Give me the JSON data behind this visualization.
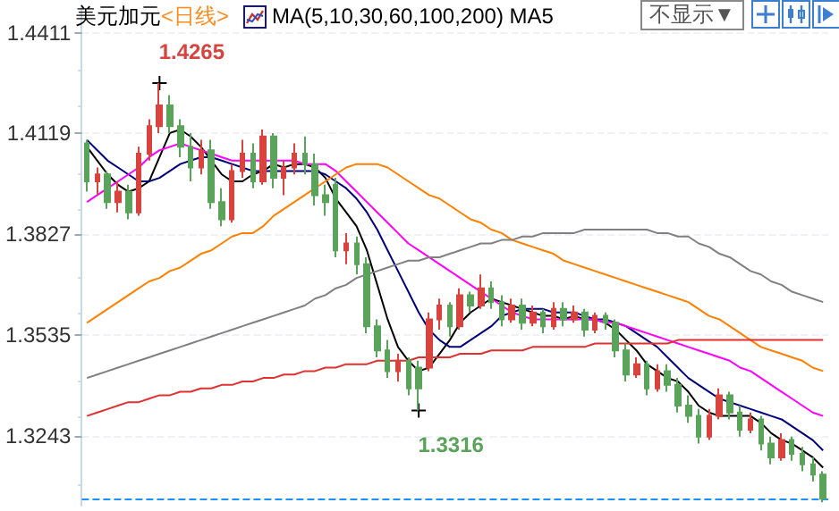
{
  "chart_data": {
    "type": "candlestick",
    "title": "美元加元",
    "subtitle": "<日线>",
    "annotations": [
      "MA(5,10,30,60,100,200) MA5",
      "不显示▼",
      "1.4265",
      "1.3316"
    ],
    "categories": [
      null,
      null,
      null,
      null,
      null,
      null,
      null,
      null,
      null,
      null,
      null,
      null,
      null,
      null,
      null,
      null,
      null,
      null,
      null,
      null,
      null,
      null,
      null,
      null,
      null,
      null,
      null,
      null,
      null,
      null,
      null,
      null,
      null,
      null,
      null,
      null,
      null,
      null,
      null,
      null,
      null,
      null,
      null,
      null,
      null,
      null,
      null,
      null,
      null,
      null,
      null,
      null,
      null,
      null,
      null,
      null,
      null,
      null,
      null,
      null,
      null,
      null,
      null,
      null,
      null,
      null,
      null,
      null,
      null,
      null,
      null,
      null
    ],
    "ohlc": [
      [
        1.409,
        1.41,
        1.395,
        1.398
      ],
      [
        1.398,
        1.402,
        1.394,
        1.4
      ],
      [
        1.4,
        1.401,
        1.39,
        1.392
      ],
      [
        1.392,
        1.398,
        1.389,
        1.395
      ],
      [
        1.395,
        1.397,
        1.387,
        1.389
      ],
      [
        1.389,
        1.408,
        1.388,
        1.406
      ],
      [
        1.406,
        1.416,
        1.404,
        1.414
      ],
      [
        1.414,
        1.4265,
        1.412,
        1.42
      ],
      [
        1.42,
        1.423,
        1.412,
        1.414
      ],
      [
        1.414,
        1.416,
        1.405,
        1.408
      ],
      [
        1.408,
        1.412,
        1.398,
        1.402
      ],
      [
        1.402,
        1.41,
        1.4,
        1.407
      ],
      [
        1.407,
        1.41,
        1.39,
        1.392
      ],
      [
        1.392,
        1.396,
        1.385,
        1.387
      ],
      [
        1.387,
        1.403,
        1.386,
        1.401
      ],
      [
        1.401,
        1.41,
        1.399,
        1.406
      ],
      [
        1.406,
        1.409,
        1.396,
        1.398
      ],
      [
        1.398,
        1.413,
        1.397,
        1.411
      ],
      [
        1.411,
        1.412,
        1.396,
        1.399
      ],
      [
        1.399,
        1.404,
        1.394,
        1.402
      ],
      [
        1.402,
        1.409,
        1.4,
        1.406
      ],
      [
        1.406,
        1.411,
        1.4,
        1.403
      ],
      [
        1.403,
        1.406,
        1.391,
        1.394
      ],
      [
        1.394,
        1.397,
        1.388,
        1.392
      ],
      [
        1.397,
        1.399,
        1.376,
        1.378
      ],
      [
        1.378,
        1.383,
        1.374,
        1.38
      ],
      [
        1.38,
        1.382,
        1.371,
        1.374
      ],
      [
        1.374,
        1.376,
        1.354,
        1.356
      ],
      [
        1.356,
        1.358,
        1.347,
        1.349
      ],
      [
        1.349,
        1.352,
        1.341,
        1.343
      ],
      [
        1.343,
        1.348,
        1.34,
        1.346
      ],
      [
        1.346,
        1.347,
        1.336,
        1.338
      ],
      [
        1.344,
        1.346,
        1.3316,
        1.338
      ],
      [
        1.344,
        1.36,
        1.343,
        1.358
      ],
      [
        1.358,
        1.364,
        1.355,
        1.362
      ],
      [
        1.362,
        1.363,
        1.353,
        1.356
      ],
      [
        1.356,
        1.367,
        1.355,
        1.365
      ],
      [
        1.365,
        1.366,
        1.36,
        1.362
      ],
      [
        1.362,
        1.371,
        1.361,
        1.367
      ],
      [
        1.367,
        1.369,
        1.361,
        1.363
      ],
      [
        1.363,
        1.365,
        1.356,
        1.358
      ],
      [
        1.358,
        1.364,
        1.357,
        1.362
      ],
      [
        1.362,
        1.364,
        1.355,
        1.357
      ],
      [
        1.357,
        1.362,
        1.356,
        1.36
      ],
      [
        1.36,
        1.361,
        1.354,
        1.356
      ],
      [
        1.356,
        1.363,
        1.355,
        1.361
      ],
      [
        1.361,
        1.363,
        1.356,
        1.358
      ],
      [
        1.358,
        1.362,
        1.357,
        1.36
      ],
      [
        1.36,
        1.361,
        1.353,
        1.355
      ],
      [
        1.355,
        1.36,
        1.354,
        1.359
      ],
      [
        1.359,
        1.36,
        1.355,
        1.357
      ],
      [
        1.357,
        1.358,
        1.347,
        1.349
      ],
      [
        1.349,
        1.351,
        1.34,
        1.342
      ],
      [
        1.342,
        1.347,
        1.341,
        1.345
      ],
      [
        1.345,
        1.346,
        1.336,
        1.338
      ],
      [
        1.338,
        1.345,
        1.337,
        1.343
      ],
      [
        1.343,
        1.345,
        1.337,
        1.339
      ],
      [
        1.339,
        1.341,
        1.331,
        1.333
      ],
      [
        1.333,
        1.336,
        1.328,
        1.33
      ],
      [
        1.33,
        1.332,
        1.322,
        1.324
      ],
      [
        1.324,
        1.332,
        1.323,
        1.33
      ],
      [
        1.33,
        1.338,
        1.329,
        1.336
      ],
      [
        1.336,
        1.337,
        1.329,
        1.331
      ],
      [
        1.331,
        1.333,
        1.324,
        1.326
      ],
      [
        1.326,
        1.331,
        1.325,
        1.329
      ],
      [
        1.329,
        1.33,
        1.32,
        1.322
      ],
      [
        1.322,
        1.324,
        1.316,
        1.318
      ],
      [
        1.318,
        1.325,
        1.317,
        1.323
      ],
      [
        1.323,
        1.324,
        1.317,
        1.319
      ],
      [
        1.319,
        1.321,
        1.314,
        1.316
      ],
      [
        1.316,
        1.318,
        1.311,
        1.313
      ],
      [
        1.313,
        1.314,
        1.305,
        1.306
      ]
    ],
    "colors": [
      "#5aa35a",
      "#d9433e",
      "#5aa35a",
      "#d9433e",
      "#5aa35a",
      "#d9433e",
      "#d9433e",
      "#d9433e",
      "#5aa35a",
      "#5aa35a",
      "#5aa35a",
      "#d9433e",
      "#5aa35a",
      "#5aa35a",
      "#d9433e",
      "#d9433e",
      "#5aa35a",
      "#d9433e",
      "#5aa35a",
      "#d9433e",
      "#d9433e",
      "#5aa35a",
      "#5aa35a",
      "#5aa35a",
      "#5aa35a",
      "#d9433e",
      "#5aa35a",
      "#5aa35a",
      "#5aa35a",
      "#5aa35a",
      "#d9433e",
      "#5aa35a",
      "#5aa35a",
      "#d9433e",
      "#d9433e",
      "#5aa35a",
      "#d9433e",
      "#5aa35a",
      "#d9433e",
      "#5aa35a",
      "#5aa35a",
      "#d9433e",
      "#5aa35a",
      "#d9433e",
      "#5aa35a",
      "#d9433e",
      "#5aa35a",
      "#d9433e",
      "#5aa35a",
      "#d9433e",
      "#5aa35a",
      "#5aa35a",
      "#5aa35a",
      "#d9433e",
      "#5aa35a",
      "#d9433e",
      "#5aa35a",
      "#5aa35a",
      "#5aa35a",
      "#5aa35a",
      "#d9433e",
      "#d9433e",
      "#5aa35a",
      "#5aa35a",
      "#d9433e",
      "#5aa35a",
      "#5aa35a",
      "#d9433e",
      "#5aa35a",
      "#5aa35a",
      "#5aa35a",
      "#5aa35a"
    ],
    "series": [
      {
        "type": "line",
        "color": "#000000",
        "values": [
          1.408,
          1.404,
          1.4,
          1.397,
          1.395,
          1.396,
          1.398,
          1.405,
          1.412,
          1.413,
          1.411,
          1.408,
          1.404,
          1.4,
          1.398,
          1.398,
          1.4,
          1.401,
          1.403,
          1.402,
          1.403,
          1.403,
          1.402,
          1.399,
          1.393,
          1.389,
          1.385,
          1.378,
          1.368,
          1.358,
          1.35,
          1.346,
          1.343,
          1.344,
          1.348,
          1.352,
          1.357,
          1.36,
          1.362,
          1.364,
          1.363,
          1.362,
          1.361,
          1.36,
          1.359,
          1.359,
          1.358,
          1.359,
          1.358,
          1.358,
          1.357,
          1.355,
          1.352,
          1.349,
          1.345,
          1.343,
          1.341,
          1.34,
          1.337,
          1.333,
          1.331,
          1.33,
          1.33,
          1.33,
          1.33,
          1.328,
          1.325,
          1.323,
          1.322,
          1.32,
          1.318,
          1.315
        ]
      },
      {
        "type": "line",
        "color": "#00007f",
        "values": [
          1.41,
          1.407,
          1.404,
          1.402,
          1.4,
          1.398,
          1.398,
          1.399,
          1.401,
          1.403,
          1.404,
          1.405,
          1.405,
          1.404,
          1.403,
          1.402,
          1.401,
          1.401,
          1.401,
          1.401,
          1.401,
          1.401,
          1.401,
          1.4,
          1.398,
          1.396,
          1.393,
          1.389,
          1.384,
          1.378,
          1.372,
          1.366,
          1.36,
          1.355,
          1.352,
          1.35,
          1.35,
          1.352,
          1.354,
          1.356,
          1.359,
          1.36,
          1.361,
          1.361,
          1.361,
          1.36,
          1.36,
          1.36,
          1.359,
          1.358,
          1.358,
          1.357,
          1.356,
          1.354,
          1.352,
          1.35,
          1.347,
          1.344,
          1.341,
          1.339,
          1.337,
          1.335,
          1.334,
          1.333,
          1.332,
          1.331,
          1.33,
          1.329,
          1.327,
          1.325,
          1.323,
          1.32
        ]
      },
      {
        "type": "line",
        "color": "#ff00ff",
        "values": [
          1.392,
          1.394,
          1.396,
          1.398,
          1.4,
          1.402,
          1.405,
          1.407,
          1.408,
          1.409,
          1.408,
          1.407,
          1.406,
          1.405,
          1.404,
          1.404,
          1.404,
          1.404,
          1.404,
          1.404,
          1.404,
          1.403,
          1.403,
          1.403,
          1.401,
          1.398,
          1.395,
          1.392,
          1.389,
          1.386,
          1.383,
          1.38,
          1.378,
          1.376,
          1.374,
          1.372,
          1.37,
          1.368,
          1.366,
          1.364,
          1.362,
          1.36,
          1.359,
          1.358,
          1.358,
          1.358,
          1.358,
          1.358,
          1.358,
          1.358,
          1.357,
          1.357,
          1.356,
          1.355,
          1.354,
          1.353,
          1.352,
          1.351,
          1.35,
          1.349,
          1.348,
          1.347,
          1.346,
          1.344,
          1.343,
          1.341,
          1.339,
          1.337,
          1.335,
          1.333,
          1.331,
          1.33
        ]
      },
      {
        "type": "line",
        "color": "#ff8000",
        "values": [
          1.357,
          1.359,
          1.361,
          1.363,
          1.365,
          1.367,
          1.369,
          1.37,
          1.372,
          1.373,
          1.375,
          1.377,
          1.378,
          1.38,
          1.382,
          1.383,
          1.383,
          1.385,
          1.388,
          1.39,
          1.392,
          1.394,
          1.396,
          1.398,
          1.4,
          1.402,
          1.403,
          1.403,
          1.403,
          1.402,
          1.4,
          1.398,
          1.396,
          1.394,
          1.393,
          1.391,
          1.389,
          1.387,
          1.386,
          1.384,
          1.383,
          1.381,
          1.38,
          1.379,
          1.378,
          1.377,
          1.375,
          1.374,
          1.373,
          1.372,
          1.371,
          1.37,
          1.369,
          1.368,
          1.367,
          1.366,
          1.365,
          1.364,
          1.363,
          1.361,
          1.359,
          1.358,
          1.356,
          1.354,
          1.352,
          1.35,
          1.349,
          1.348,
          1.347,
          1.346,
          1.344,
          1.343
        ]
      },
      {
        "type": "line",
        "color": "#808080",
        "values": [
          1.341,
          1.342,
          1.343,
          1.344,
          1.345,
          1.346,
          1.347,
          1.348,
          1.349,
          1.35,
          1.351,
          1.352,
          1.353,
          1.354,
          1.355,
          1.356,
          1.357,
          1.358,
          1.359,
          1.36,
          1.361,
          1.362,
          1.364,
          1.365,
          1.367,
          1.368,
          1.37,
          1.371,
          1.372,
          1.373,
          1.374,
          1.375,
          1.375,
          1.376,
          1.376,
          1.377,
          1.378,
          1.379,
          1.38,
          1.38,
          1.381,
          1.381,
          1.382,
          1.382,
          1.383,
          1.383,
          1.383,
          1.383,
          1.384,
          1.384,
          1.384,
          1.384,
          1.384,
          1.384,
          1.384,
          1.383,
          1.383,
          1.382,
          1.382,
          1.38,
          1.379,
          1.377,
          1.376,
          1.374,
          1.372,
          1.371,
          1.369,
          1.368,
          1.366,
          1.365,
          1.364,
          1.363
        ]
      },
      {
        "type": "line",
        "color": "#e03030",
        "values": [
          1.33,
          1.331,
          1.332,
          1.333,
          1.334,
          1.334,
          1.335,
          1.336,
          1.336,
          1.337,
          1.337,
          1.338,
          1.338,
          1.339,
          1.339,
          1.34,
          1.34,
          1.341,
          1.341,
          1.342,
          1.342,
          1.343,
          1.343,
          1.344,
          1.344,
          1.345,
          1.345,
          1.345,
          1.346,
          1.346,
          1.346,
          1.346,
          1.347,
          1.347,
          1.347,
          1.347,
          1.348,
          1.348,
          1.348,
          1.349,
          1.349,
          1.349,
          1.349,
          1.35,
          1.35,
          1.35,
          1.35,
          1.35,
          1.35,
          1.351,
          1.351,
          1.351,
          1.351,
          1.351,
          1.351,
          1.351,
          1.351,
          1.352,
          1.352,
          1.352,
          1.352,
          1.352,
          1.352,
          1.352,
          1.352,
          1.352,
          1.352,
          1.352,
          1.352,
          1.352,
          1.352,
          1.352
        ]
      }
    ],
    "ylim": [
      1.304,
      1.449
    ],
    "yticks": [
      1.4411,
      1.4119,
      1.3827,
      1.3535,
      1.3243
    ],
    "ref_lines": [
      {
        "axis": "y",
        "value": 1.306,
        "color": "#1e90ff",
        "line_style": "dashed"
      }
    ],
    "grid": "y",
    "marker": "none",
    "line_style": "solid"
  }
}
